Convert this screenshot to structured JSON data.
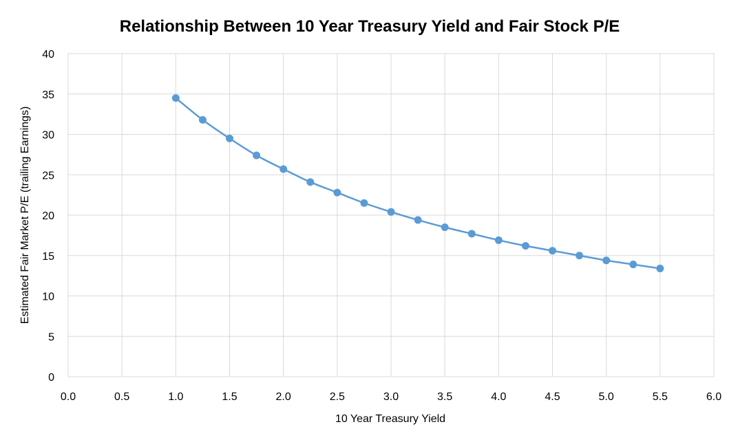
{
  "chart_data": {
    "type": "line",
    "title": "Relationship Between 10 Year Treasury Yield and Fair Stock P/E",
    "xlabel": "10 Year Treasury Yield",
    "ylabel": "Estimated Fair Market P/E (trailing Earnings)",
    "xlim": [
      0,
      6
    ],
    "ylim": [
      0,
      40
    ],
    "x_ticks": [
      "0.0",
      "0.5",
      "1.0",
      "1.5",
      "2.0",
      "2.5",
      "3.0",
      "3.5",
      "4.0",
      "4.5",
      "5.0",
      "5.5",
      "6.0"
    ],
    "y_ticks": [
      "0",
      "5",
      "10",
      "15",
      "20",
      "25",
      "30",
      "35",
      "40"
    ],
    "grid": true,
    "legend": "none",
    "series": [
      {
        "color": "#5b9bd5",
        "marker": "circle",
        "x": [
          1.0,
          1.25,
          1.5,
          1.75,
          2.0,
          2.25,
          2.5,
          2.75,
          3.0,
          3.25,
          3.5,
          3.75,
          4.0,
          4.25,
          4.5,
          4.75,
          5.0,
          5.25,
          5.5
        ],
        "y": [
          34.5,
          31.8,
          29.5,
          27.4,
          25.7,
          24.1,
          22.8,
          21.5,
          20.4,
          19.4,
          18.5,
          17.7,
          16.9,
          16.2,
          15.6,
          15.0,
          14.4,
          13.9,
          13.4
        ]
      }
    ]
  }
}
